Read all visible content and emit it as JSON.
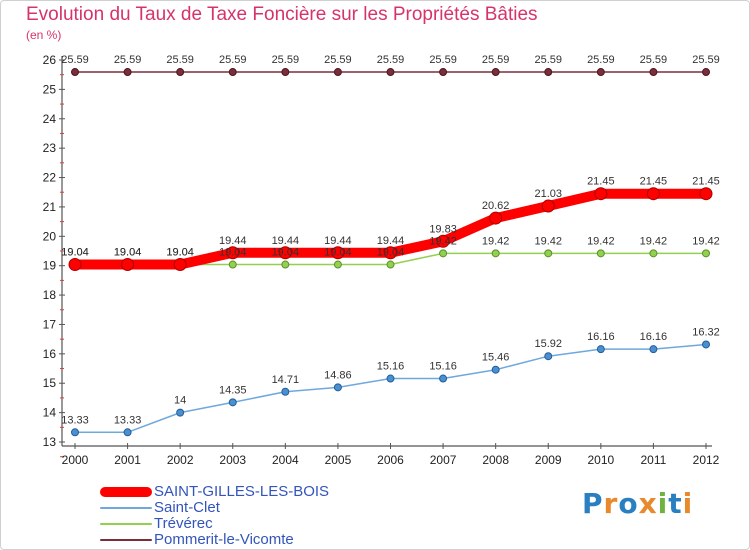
{
  "chart_data": {
    "type": "line",
    "title": "Evolution du Taux de Taxe Foncière sur les Propriétés Bâties",
    "ylabel": "(en %)",
    "x": [
      "2000",
      "2001",
      "2002",
      "2003",
      "2004",
      "2005",
      "2006",
      "2007",
      "2008",
      "2009",
      "2010",
      "2011",
      "2012"
    ],
    "ylim": [
      13,
      26
    ],
    "yticks": [
      13,
      14,
      15,
      16,
      17,
      18,
      19,
      20,
      21,
      22,
      23,
      24,
      25,
      26
    ],
    "grid": false,
    "legend_position": "bottom-left",
    "series": [
      {
        "name": "SAINT-GILLES-LES-BOIS",
        "color": "#ff0000",
        "values": [
          19.04,
          19.04,
          19.04,
          19.44,
          19.44,
          19.44,
          19.44,
          19.83,
          20.62,
          21.03,
          21.45,
          21.45,
          21.45
        ],
        "labels": [
          "19.04",
          "19.04",
          "19.04",
          "19.44",
          "19.44",
          "19.44",
          "19.44",
          "19.83",
          "20.62",
          "21.03",
          "21.45",
          "21.45",
          "21.45"
        ]
      },
      {
        "name": "Saint-Clet",
        "color": "#6fa8dc",
        "values": [
          13.33,
          13.33,
          14,
          14.35,
          14.71,
          14.86,
          15.16,
          15.16,
          15.46,
          15.92,
          16.16,
          16.16,
          16.32
        ],
        "labels": [
          "13.33",
          "13.33",
          "14",
          "14.35",
          "14.71",
          "14.86",
          "15.16",
          "15.16",
          "15.46",
          "15.92",
          "16.16",
          "16.16",
          "16.32"
        ]
      },
      {
        "name": "Trévérec",
        "color": "#93d050",
        "values": [
          19.04,
          19.04,
          19.04,
          19.04,
          19.04,
          19.04,
          19.04,
          19.42,
          19.42,
          19.42,
          19.42,
          19.42,
          19.42
        ],
        "labels": [
          "19.04",
          "19.04",
          "19.04",
          "19.04",
          "19.04",
          "19.04",
          "19.04",
          "19.42",
          "19.42",
          "19.42",
          "19.42",
          "19.42",
          "19.42"
        ]
      },
      {
        "name": "Pommerit-le-Vicomte",
        "color": "#7b2d3a",
        "values": [
          25.59,
          25.59,
          25.59,
          25.59,
          25.59,
          25.59,
          25.59,
          25.59,
          25.59,
          25.59,
          25.59,
          25.59,
          25.59
        ],
        "labels": [
          "25.59",
          "25.59",
          "25.59",
          "25.59",
          "25.59",
          "25.59",
          "25.59",
          "25.59",
          "25.59",
          "25.59",
          "25.59",
          "25.59",
          "25.59"
        ]
      }
    ]
  },
  "logo": {
    "text": "Proxiti",
    "colors": [
      "#2a7fc1",
      "#e8892b",
      "#2a7fc1",
      "#e8892b",
      "#6cb33f",
      "#2a7fc1",
      "#e8892b"
    ]
  }
}
